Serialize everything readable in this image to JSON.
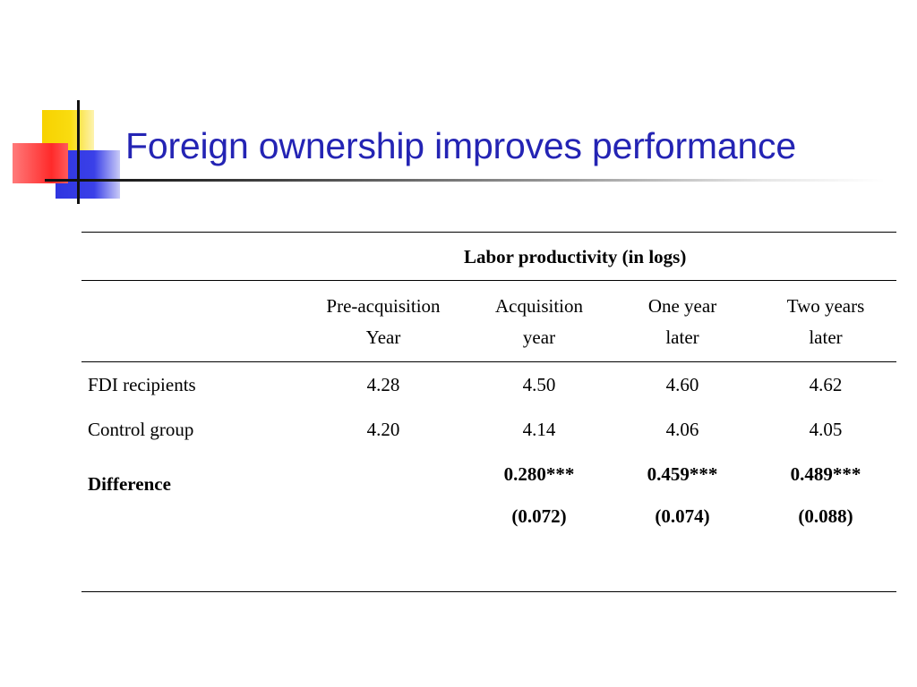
{
  "slide": {
    "title": "Foreign ownership improves performance"
  },
  "table": {
    "group_header": "Labor productivity (in logs)",
    "columns": [
      [
        "Pre-acquisition",
        "Year"
      ],
      [
        "Acquisition",
        "year"
      ],
      [
        "One year",
        "later"
      ],
      [
        "Two years",
        "later"
      ]
    ],
    "rows": [
      {
        "label": "FDI recipients",
        "values": [
          "4.28",
          "4.50",
          "4.60",
          "4.62"
        ]
      },
      {
        "label": "Control group",
        "values": [
          "4.20",
          "4.14",
          "4.06",
          "4.05"
        ]
      }
    ],
    "difference": {
      "label": "Difference",
      "values": [
        "",
        "0.280***",
        "0.459***",
        "0.489***"
      ],
      "std_errors": [
        "",
        "(0.072)",
        "(0.074)",
        "(0.088)"
      ]
    }
  },
  "colors": {
    "title": "#2424b4",
    "logo_yellow": "#f7d200",
    "logo_blue": "#2f35e0",
    "logo_red": "#ff2a2a"
  }
}
